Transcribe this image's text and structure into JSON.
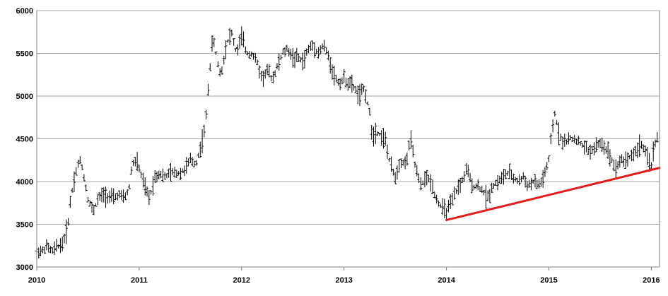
{
  "chart_data": {
    "type": "line",
    "style": "ohlc-bars",
    "title": "",
    "xlabel": "",
    "ylabel": "",
    "x_ticks": [
      "2010",
      "2011",
      "2012",
      "2013",
      "2014",
      "2015",
      "2016"
    ],
    "y_ticks": [
      "3000",
      "3500",
      "4000",
      "4500",
      "5000",
      "5500",
      "6000"
    ],
    "xlim": [
      2010.0,
      2016.08
    ],
    "ylim": [
      3000,
      6000
    ],
    "grid": "horizontal",
    "series": [
      {
        "color": "#000000",
        "points": [
          [
            2010.0,
            3200
          ],
          [
            2010.05,
            3180
          ],
          [
            2010.1,
            3240
          ],
          [
            2010.15,
            3180
          ],
          [
            2010.2,
            3240
          ],
          [
            2010.25,
            3270
          ],
          [
            2010.3,
            3450
          ],
          [
            2010.33,
            3800
          ],
          [
            2010.37,
            4050
          ],
          [
            2010.4,
            4200
          ],
          [
            2010.43,
            4250
          ],
          [
            2010.47,
            4000
          ],
          [
            2010.5,
            3800
          ],
          [
            2010.55,
            3650
          ],
          [
            2010.6,
            3800
          ],
          [
            2010.65,
            3850
          ],
          [
            2010.7,
            3830
          ],
          [
            2010.75,
            3800
          ],
          [
            2010.8,
            3850
          ],
          [
            2010.85,
            3800
          ],
          [
            2010.9,
            3900
          ],
          [
            2010.93,
            4200
          ],
          [
            2010.97,
            4250
          ],
          [
            2011.0,
            4150
          ],
          [
            2011.05,
            3950
          ],
          [
            2011.1,
            3800
          ],
          [
            2011.15,
            4050
          ],
          [
            2011.2,
            4100
          ],
          [
            2011.25,
            4050
          ],
          [
            2011.3,
            4100
          ],
          [
            2011.35,
            4100
          ],
          [
            2011.4,
            4100
          ],
          [
            2011.45,
            4150
          ],
          [
            2011.5,
            4250
          ],
          [
            2011.55,
            4200
          ],
          [
            2011.6,
            4400
          ],
          [
            2011.63,
            4550
          ],
          [
            2011.65,
            4700
          ],
          [
            2011.68,
            5200
          ],
          [
            2011.7,
            5450
          ],
          [
            2011.72,
            5700
          ],
          [
            2011.75,
            5500
          ],
          [
            2011.78,
            5300
          ],
          [
            2011.8,
            5250
          ],
          [
            2011.85,
            5600
          ],
          [
            2011.9,
            5750
          ],
          [
            2011.95,
            5500
          ],
          [
            2012.0,
            5700
          ],
          [
            2012.05,
            5500
          ],
          [
            2012.1,
            5500
          ],
          [
            2012.15,
            5400
          ],
          [
            2012.2,
            5200
          ],
          [
            2012.25,
            5300
          ],
          [
            2012.3,
            5200
          ],
          [
            2012.35,
            5350
          ],
          [
            2012.4,
            5500
          ],
          [
            2012.45,
            5550
          ],
          [
            2012.5,
            5450
          ],
          [
            2012.55,
            5450
          ],
          [
            2012.6,
            5400
          ],
          [
            2012.65,
            5550
          ],
          [
            2012.7,
            5600
          ],
          [
            2012.75,
            5500
          ],
          [
            2012.8,
            5600
          ],
          [
            2012.85,
            5450
          ],
          [
            2012.9,
            5250
          ],
          [
            2012.95,
            5150
          ],
          [
            2013.0,
            5200
          ],
          [
            2013.05,
            5150
          ],
          [
            2013.1,
            5100
          ],
          [
            2013.15,
            5000
          ],
          [
            2013.2,
            5100
          ],
          [
            2013.25,
            4800
          ],
          [
            2013.28,
            4500
          ],
          [
            2013.3,
            4600
          ],
          [
            2013.35,
            4550
          ],
          [
            2013.4,
            4500
          ],
          [
            2013.45,
            4200
          ],
          [
            2013.5,
            4050
          ],
          [
            2013.55,
            4250
          ],
          [
            2013.6,
            4200
          ],
          [
            2013.65,
            4500
          ],
          [
            2013.7,
            4150
          ],
          [
            2013.75,
            3950
          ],
          [
            2013.8,
            4050
          ],
          [
            2013.85,
            4000
          ],
          [
            2013.9,
            3800
          ],
          [
            2013.95,
            3700
          ],
          [
            2014.0,
            3650
          ],
          [
            2014.05,
            3750
          ],
          [
            2014.1,
            3900
          ],
          [
            2014.15,
            4000
          ],
          [
            2014.2,
            4150
          ],
          [
            2014.25,
            3950
          ],
          [
            2014.3,
            3950
          ],
          [
            2014.35,
            3900
          ],
          [
            2014.4,
            3800
          ],
          [
            2014.45,
            3950
          ],
          [
            2014.5,
            4000
          ],
          [
            2014.55,
            4050
          ],
          [
            2014.6,
            4100
          ],
          [
            2014.65,
            4050
          ],
          [
            2014.7,
            4000
          ],
          [
            2014.75,
            4050
          ],
          [
            2014.8,
            3950
          ],
          [
            2014.85,
            4000
          ],
          [
            2014.9,
            3950
          ],
          [
            2014.95,
            4050
          ],
          [
            2015.0,
            4250
          ],
          [
            2015.03,
            4600
          ],
          [
            2015.06,
            4800
          ],
          [
            2015.1,
            4550
          ],
          [
            2015.15,
            4450
          ],
          [
            2015.2,
            4500
          ],
          [
            2015.25,
            4500
          ],
          [
            2015.3,
            4450
          ],
          [
            2015.35,
            4400
          ],
          [
            2015.4,
            4350
          ],
          [
            2015.45,
            4400
          ],
          [
            2015.5,
            4450
          ],
          [
            2015.55,
            4400
          ],
          [
            2015.6,
            4300
          ],
          [
            2015.65,
            4150
          ],
          [
            2015.7,
            4250
          ],
          [
            2015.75,
            4250
          ],
          [
            2015.8,
            4300
          ],
          [
            2015.85,
            4350
          ],
          [
            2015.9,
            4450
          ],
          [
            2015.95,
            4300
          ],
          [
            2016.0,
            4200
          ],
          [
            2016.03,
            4400
          ],
          [
            2016.06,
            4550
          ]
        ]
      }
    ],
    "annotations": [
      {
        "type": "trendline",
        "color": "#e31b1b",
        "from": [
          2014.0,
          3550
        ],
        "to": [
          2016.08,
          4160
        ]
      }
    ]
  }
}
